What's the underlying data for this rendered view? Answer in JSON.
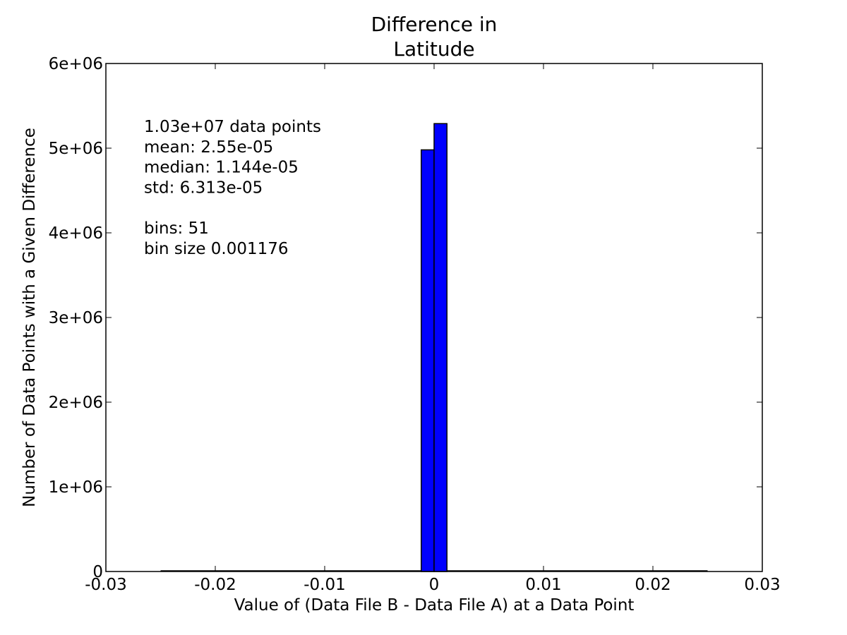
{
  "chart_data": {
    "type": "bar",
    "subtype": "histogram",
    "title": [
      "Difference in",
      "Latitude"
    ],
    "xlabel": "Value of (Data File B - Data File A) at a Data Point",
    "ylabel": "Number of Data Points with a Given Difference",
    "xlim": [
      -0.03,
      0.03
    ],
    "ylim": [
      0,
      6000000
    ],
    "x_ticks": [
      -0.03,
      -0.02,
      -0.01,
      0,
      0.01,
      0.02,
      0.03
    ],
    "x_tick_labels": [
      "-0.03",
      "-0.02",
      "-0.01",
      "0",
      "0.01",
      "0.02",
      "0.03"
    ],
    "y_ticks": [
      0,
      1000000,
      2000000,
      3000000,
      4000000,
      5000000,
      6000000
    ],
    "y_tick_labels": [
      "0",
      "1e+06",
      "2e+06",
      "3e+06",
      "4e+06",
      "5e+06",
      "6e+06"
    ],
    "bins": [
      {
        "start": -0.001176,
        "end": 0.0,
        "value": 4980000
      },
      {
        "start": 0.0,
        "end": 0.001176,
        "value": 5290000
      }
    ],
    "baseline_range": [
      -0.025,
      0.025
    ],
    "bar_color": "#0000ff",
    "edge_color": "#000000",
    "grid": false,
    "legend": "none",
    "annotation": {
      "lines": [
        "1.03e+07 data points",
        "mean: 2.55e-05",
        "median: 1.144e-05",
        "std: 6.313e-05",
        "",
        "bins: 51",
        "bin size 0.001176"
      ],
      "placement": "top-left"
    }
  }
}
